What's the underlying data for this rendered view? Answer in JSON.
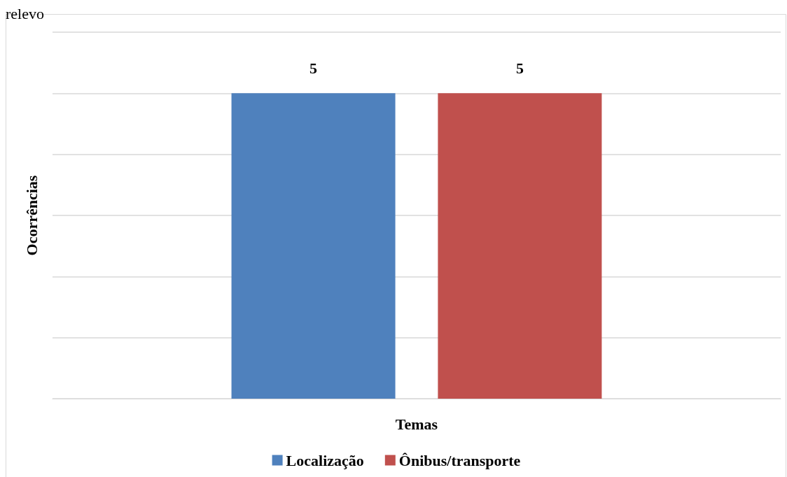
{
  "chart_data": {
    "type": "bar",
    "annotations": [
      "relevo"
    ],
    "xlabel": "Temas",
    "ylabel": "Ocorrências",
    "categories": [
      null
    ],
    "series": [
      {
        "name": "Localização",
        "color": "#4f81bd",
        "values": [
          5
        ]
      },
      {
        "name": "Ônibus/transporte",
        "color": "#c0504d",
        "values": [
          5
        ]
      }
    ],
    "ylim": [
      0,
      6
    ],
    "yticks": [
      {
        "value": 0,
        "label": null
      },
      {
        "value": 1,
        "label": null
      },
      {
        "value": 2,
        "label": null
      },
      {
        "value": 3,
        "label": null
      },
      {
        "value": 4,
        "label": null
      },
      {
        "value": 5,
        "label": null
      },
      {
        "value": 6,
        "label": null
      }
    ],
    "grid": "y",
    "legend": "bottom",
    "data_labels": true
  }
}
